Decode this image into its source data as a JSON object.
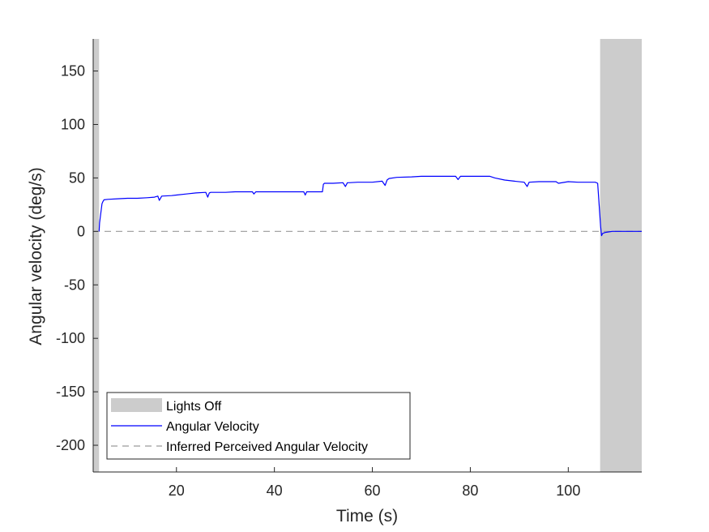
{
  "chart_data": {
    "type": "line",
    "xlabel": "Time (s)",
    "ylabel": "Angular velocity (deg/s)",
    "xlim": [
      3,
      115
    ],
    "ylim": [
      -225,
      180
    ],
    "xticks": [
      20,
      40,
      60,
      80,
      100
    ],
    "yticks": [
      -200,
      -150,
      -100,
      -50,
      0,
      50,
      100,
      150
    ],
    "grid": false,
    "legend_position": "bottom-left",
    "lights_off_regions": [
      [
        3,
        4.2
      ],
      [
        106.5,
        115
      ]
    ],
    "series": [
      {
        "name": "Lights Off",
        "kind": "shaded-region",
        "color": "#cccccc"
      },
      {
        "name": "Angular Velocity",
        "kind": "line",
        "color": "#0000ff",
        "x": [
          4.2,
          4.3,
          4.8,
          5.0,
          5.2,
          6,
          8,
          10,
          12,
          14,
          15.5,
          16.2,
          16.5,
          17,
          19,
          20,
          22,
          24,
          26,
          26.4,
          26.7,
          27,
          30,
          32,
          34,
          35.5,
          35.8,
          36.2,
          38,
          40,
          42,
          44,
          46,
          46.3,
          46.6,
          48,
          49.8,
          50.0,
          50.2,
          52,
          54,
          54.5,
          54.9,
          55.2,
          57,
          60,
          62,
          62.6,
          63.0,
          63.4,
          65,
          68,
          70,
          72,
          75,
          77,
          77.5,
          78,
          80,
          82,
          84,
          85,
          87,
          89,
          91,
          91.6,
          92,
          94,
          96,
          97.5,
          98,
          100,
          102,
          104,
          105.5,
          106.0,
          106.3,
          106.6,
          106.8,
          107.0,
          107.5,
          108.2,
          109,
          110,
          112,
          114,
          115
        ],
        "y": [
          0,
          8,
          26,
          28,
          29.5,
          30,
          30.5,
          31,
          31,
          31.5,
          32,
          33,
          29,
          33,
          33.5,
          34,
          35,
          36,
          36.5,
          32,
          36,
          36.5,
          36.5,
          37,
          37,
          37,
          35,
          37,
          37,
          37,
          37,
          37,
          37,
          34,
          37,
          37,
          37,
          44,
          45,
          45,
          45.5,
          42,
          45.5,
          45.5,
          46,
          46,
          47,
          43,
          48,
          49.5,
          50.5,
          51,
          51.5,
          51.5,
          51.5,
          51.5,
          48.5,
          51.5,
          51.5,
          51.5,
          51.5,
          50,
          48,
          47,
          46,
          42,
          46,
          46.5,
          46.5,
          46.5,
          45,
          46.5,
          46,
          46,
          46,
          45,
          25,
          5,
          -4,
          -2,
          -1,
          -0.5,
          0,
          0,
          0,
          0,
          0
        ]
      },
      {
        "name": "Inferred Perceived Angular Velocity",
        "kind": "dashed-line",
        "color": "#9a9a9a",
        "x": [
          3,
          115
        ],
        "y": [
          0,
          0
        ]
      }
    ]
  }
}
